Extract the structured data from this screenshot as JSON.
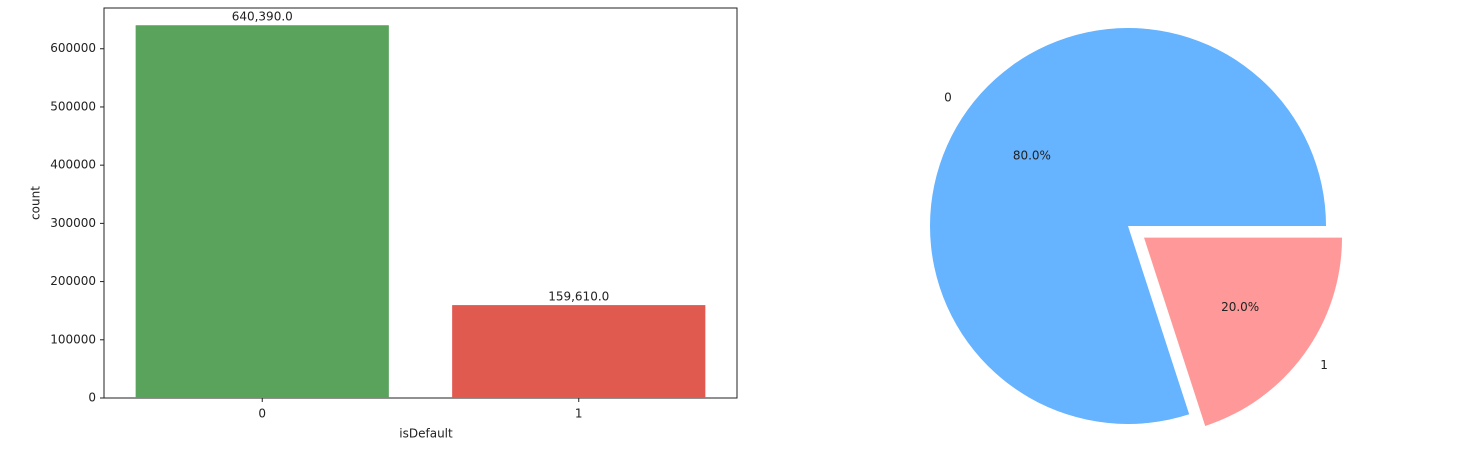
{
  "chart_data": [
    {
      "type": "bar",
      "categories": [
        "0",
        "1"
      ],
      "values": [
        640390,
        159610
      ],
      "value_labels": [
        "640,390.0",
        "159,610.0"
      ],
      "colors": [
        "#59a35d",
        "#e05a50"
      ],
      "x_label": "isDefault",
      "y_label": "count",
      "ylim": [
        0,
        670000
      ],
      "yticks": [
        0,
        100000,
        200000,
        300000,
        400000,
        500000,
        600000
      ]
    },
    {
      "type": "pie",
      "categories": [
        "0",
        "1"
      ],
      "values": [
        80,
        20
      ],
      "value_labels": [
        "80.0%",
        "20.0%"
      ],
      "colors": [
        "#66b3ff",
        "#ff9999"
      ],
      "explode": [
        0,
        0.1
      ]
    }
  ]
}
